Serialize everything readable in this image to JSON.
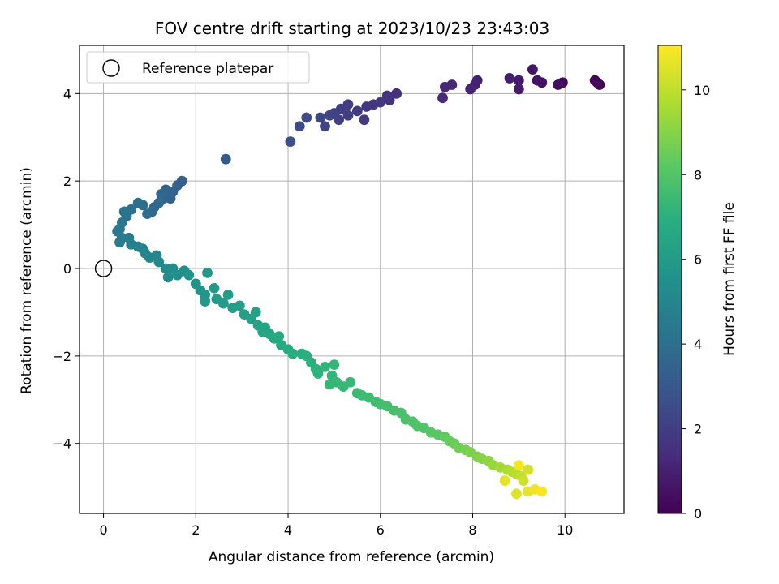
{
  "chart_data": {
    "type": "scatter",
    "title": "FOV centre drift starting at 2023/10/23 23:43:03",
    "xlabel": "Angular distance from reference (arcmin)",
    "ylabel": "Rotation from reference (arcmin)",
    "xlim": [
      -0.52,
      11.28
    ],
    "ylim": [
      -5.6,
      5.1
    ],
    "xticks": [
      0,
      2,
      4,
      6,
      8,
      10
    ],
    "yticks": [
      -4,
      -2,
      0,
      2,
      4
    ],
    "grid": true,
    "legend": {
      "placement": "top-left",
      "entries": [
        "Reference platepar"
      ]
    },
    "reference_point": {
      "label": "Reference platepar",
      "x": 0,
      "y": 0
    },
    "colorbar": {
      "label": "Hours from first FF file",
      "colormap": "viridis",
      "range": [
        0,
        11.05
      ],
      "ticks": [
        0,
        2,
        4,
        6,
        8,
        10
      ]
    },
    "series": [
      {
        "columns": [
          "x",
          "y",
          "hours"
        ],
        "points": [
          [
            10.75,
            4.2,
            0.0
          ],
          [
            10.65,
            4.3,
            0.1
          ],
          [
            10.7,
            4.25,
            0.15
          ],
          [
            9.95,
            4.25,
            0.3
          ],
          [
            9.85,
            4.2,
            0.4
          ],
          [
            9.5,
            4.25,
            0.5
          ],
          [
            9.4,
            4.3,
            0.55
          ],
          [
            9.3,
            4.55,
            0.65
          ],
          [
            9.0,
            4.1,
            0.75
          ],
          [
            9.0,
            4.3,
            0.8
          ],
          [
            8.8,
            4.35,
            0.9
          ],
          [
            8.1,
            4.3,
            1.0
          ],
          [
            8.05,
            4.2,
            1.05
          ],
          [
            7.95,
            4.1,
            1.1
          ],
          [
            7.55,
            4.2,
            1.2
          ],
          [
            7.4,
            4.15,
            1.25
          ],
          [
            7.35,
            3.9,
            1.3
          ],
          [
            6.35,
            4.0,
            1.5
          ],
          [
            6.2,
            3.85,
            1.6
          ],
          [
            6.15,
            3.95,
            1.65
          ],
          [
            6.0,
            3.8,
            1.7
          ],
          [
            5.85,
            3.75,
            1.75
          ],
          [
            5.7,
            3.7,
            1.8
          ],
          [
            5.65,
            3.4,
            1.85
          ],
          [
            5.5,
            3.6,
            1.9
          ],
          [
            5.3,
            3.75,
            1.95
          ],
          [
            5.3,
            3.5,
            2.0
          ],
          [
            5.15,
            3.65,
            2.05
          ],
          [
            5.1,
            3.4,
            2.1
          ],
          [
            5.0,
            3.55,
            2.15
          ],
          [
            4.9,
            3.5,
            2.2
          ],
          [
            4.8,
            3.25,
            2.25
          ],
          [
            4.7,
            3.45,
            2.3
          ],
          [
            4.4,
            3.45,
            2.45
          ],
          [
            4.25,
            3.25,
            2.5
          ],
          [
            4.05,
            2.9,
            2.65
          ],
          [
            2.65,
            2.5,
            3.1
          ],
          [
            1.7,
            2.0,
            3.35
          ],
          [
            1.6,
            1.9,
            3.4
          ],
          [
            1.5,
            1.75,
            3.45
          ],
          [
            1.45,
            1.6,
            3.5
          ],
          [
            1.35,
            1.8,
            3.55
          ],
          [
            1.3,
            1.6,
            3.6
          ],
          [
            1.25,
            1.7,
            3.65
          ],
          [
            1.2,
            1.5,
            3.7
          ],
          [
            1.1,
            1.4,
            3.75
          ],
          [
            1.05,
            1.3,
            3.8
          ],
          [
            0.95,
            1.25,
            3.9
          ],
          [
            0.85,
            1.45,
            3.95
          ],
          [
            0.75,
            1.5,
            4.0
          ],
          [
            0.6,
            1.35,
            4.1
          ],
          [
            0.5,
            1.2,
            4.15
          ],
          [
            0.45,
            1.3,
            4.2
          ],
          [
            0.4,
            1.05,
            4.3
          ],
          [
            0.35,
            0.9,
            4.4
          ],
          [
            0.3,
            0.85,
            4.45
          ],
          [
            0.4,
            0.7,
            4.55
          ],
          [
            0.35,
            0.6,
            4.6
          ],
          [
            0.55,
            0.7,
            4.65
          ],
          [
            0.6,
            0.55,
            4.75
          ],
          [
            0.75,
            0.5,
            4.8
          ],
          [
            0.85,
            0.45,
            4.85
          ],
          [
            0.9,
            0.35,
            4.95
          ],
          [
            1.0,
            0.25,
            5.0
          ],
          [
            1.15,
            0.3,
            5.05
          ],
          [
            1.2,
            0.15,
            5.15
          ],
          [
            1.35,
            0.0,
            5.25
          ],
          [
            1.5,
            0.0,
            5.3
          ],
          [
            1.4,
            -0.2,
            5.35
          ],
          [
            1.6,
            -0.15,
            5.45
          ],
          [
            1.75,
            -0.05,
            5.5
          ],
          [
            1.85,
            -0.15,
            5.55
          ],
          [
            2.0,
            -0.35,
            5.6
          ],
          [
            2.1,
            -0.5,
            5.7
          ],
          [
            2.2,
            -0.6,
            5.75
          ],
          [
            2.2,
            -0.75,
            5.8
          ],
          [
            2.25,
            -0.1,
            5.85
          ],
          [
            2.4,
            -0.45,
            5.9
          ],
          [
            2.45,
            -0.7,
            5.95
          ],
          [
            2.6,
            -0.8,
            6.0
          ],
          [
            2.7,
            -0.6,
            6.05
          ],
          [
            2.8,
            -0.9,
            6.1
          ],
          [
            2.95,
            -0.85,
            6.15
          ],
          [
            3.05,
            -1.05,
            6.2
          ],
          [
            3.2,
            -1.15,
            6.3
          ],
          [
            3.3,
            -1.0,
            6.35
          ],
          [
            3.35,
            -1.3,
            6.4
          ],
          [
            3.45,
            -1.45,
            6.45
          ],
          [
            3.5,
            -1.35,
            6.5
          ],
          [
            3.6,
            -1.5,
            6.55
          ],
          [
            3.7,
            -1.6,
            6.6
          ],
          [
            3.8,
            -1.55,
            6.65
          ],
          [
            3.85,
            -1.75,
            6.7
          ],
          [
            4.0,
            -1.85,
            6.8
          ],
          [
            4.1,
            -1.95,
            6.85
          ],
          [
            4.3,
            -1.95,
            6.9
          ],
          [
            4.4,
            -2.0,
            6.95
          ],
          [
            4.5,
            -2.15,
            7.0
          ],
          [
            4.6,
            -2.3,
            7.05
          ],
          [
            4.65,
            -2.4,
            7.1
          ],
          [
            4.8,
            -2.25,
            7.15
          ],
          [
            4.95,
            -2.45,
            7.2
          ],
          [
            5.0,
            -2.2,
            7.25
          ],
          [
            5.05,
            -2.6,
            7.3
          ],
          [
            4.9,
            -2.65,
            7.3
          ],
          [
            5.2,
            -2.7,
            7.35
          ],
          [
            5.35,
            -2.6,
            7.4
          ],
          [
            5.5,
            -2.85,
            7.45
          ],
          [
            5.6,
            -2.9,
            7.5
          ],
          [
            5.75,
            -2.95,
            7.55
          ],
          [
            5.9,
            -3.05,
            7.6
          ],
          [
            6.0,
            -3.1,
            7.65
          ],
          [
            6.15,
            -3.15,
            7.7
          ],
          [
            6.3,
            -3.25,
            7.75
          ],
          [
            6.45,
            -3.3,
            7.8
          ],
          [
            6.55,
            -3.45,
            7.85
          ],
          [
            6.7,
            -3.5,
            7.9
          ],
          [
            6.8,
            -3.6,
            7.95
          ],
          [
            6.95,
            -3.65,
            8.0
          ],
          [
            7.1,
            -3.75,
            8.1
          ],
          [
            7.25,
            -3.8,
            8.2
          ],
          [
            7.4,
            -3.85,
            8.3
          ],
          [
            7.5,
            -3.95,
            8.4
          ],
          [
            7.6,
            -4.0,
            8.5
          ],
          [
            7.7,
            -4.1,
            8.6
          ],
          [
            7.85,
            -4.15,
            8.7
          ],
          [
            7.95,
            -4.2,
            8.8
          ],
          [
            8.1,
            -4.3,
            8.9
          ],
          [
            8.2,
            -4.35,
            9.0
          ],
          [
            8.35,
            -4.4,
            9.15
          ],
          [
            8.45,
            -4.5,
            9.3
          ],
          [
            8.6,
            -4.55,
            9.45
          ],
          [
            8.75,
            -4.6,
            9.6
          ],
          [
            8.85,
            -4.65,
            9.75
          ],
          [
            8.95,
            -4.7,
            9.9
          ],
          [
            9.05,
            -4.75,
            10.05
          ],
          [
            9.1,
            -4.85,
            10.2
          ],
          [
            9.2,
            -4.6,
            10.35
          ],
          [
            8.95,
            -5.15,
            10.5
          ],
          [
            9.2,
            -5.1,
            10.65
          ],
          [
            9.35,
            -5.05,
            10.8
          ],
          [
            9.5,
            -5.1,
            10.95
          ],
          [
            8.7,
            -4.85,
            10.6
          ],
          [
            9.0,
            -4.5,
            10.9
          ]
        ]
      }
    ]
  }
}
